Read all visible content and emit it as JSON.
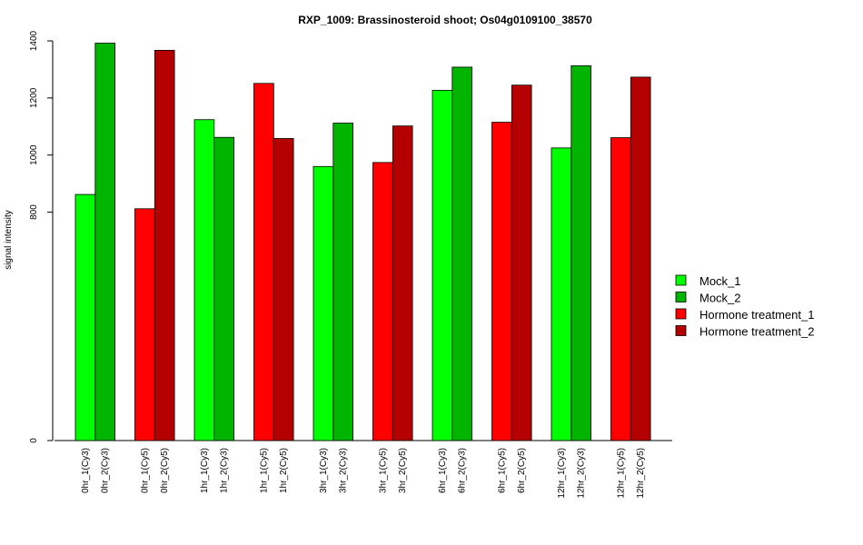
{
  "chart_data": {
    "type": "bar",
    "title": "RXP_1009: Brassinosteroid shoot; Os04g0109100_38570",
    "ylabel": "signal intensity",
    "xlabel": "",
    "yticks": [
      0,
      800,
      1000,
      1200,
      1400
    ],
    "ylim": [
      0,
      1400
    ],
    "grid": false,
    "legend_position": "right",
    "legend": [
      {
        "name": "Mock_1",
        "color": "#00FF00"
      },
      {
        "name": "Mock_2",
        "color": "#00B400"
      },
      {
        "name": "Hormone treatment_1",
        "color": "#FF0000"
      },
      {
        "name": "Hormone treatment_2",
        "color": "#B40000"
      }
    ],
    "groups": [
      {
        "bars": [
          {
            "label": "0hr_1(Cy3)",
            "value": 862,
            "color": "#00FF00"
          },
          {
            "label": "0hr_2(Cy3)",
            "value": 1392,
            "color": "#00B400"
          }
        ]
      },
      {
        "bars": [
          {
            "label": "0hr_1(Cy5)",
            "value": 812,
            "color": "#FF0000"
          },
          {
            "label": "0hr_2(Cy5)",
            "value": 1367,
            "color": "#B40000"
          }
        ]
      },
      {
        "bars": [
          {
            "label": "1hr_1(Cy3)",
            "value": 1124,
            "color": "#00FF00"
          },
          {
            "label": "1hr_2(Cy3)",
            "value": 1062,
            "color": "#00B400"
          }
        ]
      },
      {
        "bars": [
          {
            "label": "1hr_1(Cy5)",
            "value": 1251,
            "color": "#FF0000"
          },
          {
            "label": "1hr_2(Cy5)",
            "value": 1058,
            "color": "#B40000"
          }
        ]
      },
      {
        "bars": [
          {
            "label": "3hr_1(Cy3)",
            "value": 960,
            "color": "#00FF00"
          },
          {
            "label": "3hr_2(Cy3)",
            "value": 1112,
            "color": "#00B400"
          }
        ]
      },
      {
        "bars": [
          {
            "label": "3hr_1(Cy5)",
            "value": 974,
            "color": "#FF0000"
          },
          {
            "label": "3hr_2(Cy5)",
            "value": 1102,
            "color": "#B40000"
          }
        ]
      },
      {
        "bars": [
          {
            "label": "6hr_1(Cy3)",
            "value": 1227,
            "color": "#00FF00"
          },
          {
            "label": "6hr_2(Cy3)",
            "value": 1308,
            "color": "#00B400"
          }
        ]
      },
      {
        "bars": [
          {
            "label": "6hr_1(Cy5)",
            "value": 1115,
            "color": "#FF0000"
          },
          {
            "label": "6hr_2(Cy5)",
            "value": 1245,
            "color": "#B40000"
          }
        ]
      },
      {
        "bars": [
          {
            "label": "12hr_1(Cy3)",
            "value": 1025,
            "color": "#00FF00"
          },
          {
            "label": "12hr_2(Cy3)",
            "value": 1313,
            "color": "#00B400"
          }
        ]
      },
      {
        "bars": [
          {
            "label": "12hr_1(Cy5)",
            "value": 1061,
            "color": "#FF0000"
          },
          {
            "label": "12hr_2(Cy5)",
            "value": 1273,
            "color": "#B40000"
          }
        ]
      }
    ]
  }
}
